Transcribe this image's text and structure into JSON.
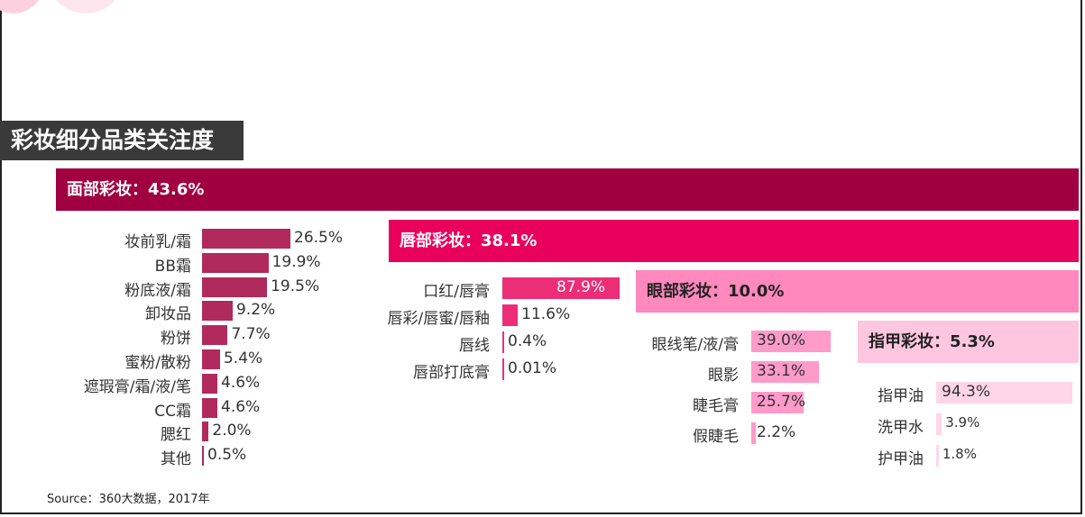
{
  "title": "彩妆细分品类关注度",
  "source": "Source：360大数据，2017年",
  "colors": {
    "face": "#a0003f",
    "face_bar": "#b02a5e",
    "lip": "#e8005c",
    "lip_bar": "#ec2e77",
    "eye": "#ff88bd",
    "eye_bar": "#ff9ac9",
    "nail": "#ffc6df",
    "nail_bar": "#ffd6e8"
  },
  "chart_data": [
    {
      "type": "bar",
      "title": "面部彩妆：43.6%",
      "categories": [
        "妆前乳/霜",
        "BB霜",
        "粉底液/霜",
        "卸妆品",
        "粉饼",
        "蜜粉/散粉",
        "遮瑕膏/霜/液/笔",
        "CC霜",
        "腮红",
        "其他"
      ],
      "values": [
        26.5,
        19.9,
        19.5,
        9.2,
        7.7,
        5.4,
        4.6,
        4.6,
        2.0,
        0.5
      ],
      "labels": [
        "26.5%",
        "19.9%",
        "19.5%",
        "9.2%",
        "7.7%",
        "5.4%",
        "4.6%",
        "4.6%",
        "2.0%",
        "0.5%"
      ]
    },
    {
      "type": "bar",
      "title": "唇部彩妆：38.1%",
      "categories": [
        "口红/唇膏",
        "唇彩/唇蜜/唇釉",
        "唇线",
        "唇部打底膏"
      ],
      "values": [
        87.9,
        11.6,
        0.4,
        0.01
      ],
      "labels": [
        "87.9%",
        "11.6%",
        "0.4%",
        "0.01%"
      ]
    },
    {
      "type": "bar",
      "title": "眼部彩妆：10.0%",
      "categories": [
        "眼线笔/液/膏",
        "眼影",
        "睫毛膏",
        "假睫毛"
      ],
      "values": [
        39.0,
        33.1,
        25.7,
        2.2
      ],
      "labels": [
        "39.0%",
        "33.1%",
        "25.7%",
        "2.2%"
      ]
    },
    {
      "type": "bar",
      "title": "指甲彩妆：5.3%",
      "categories": [
        "指甲油",
        "洗甲水",
        "护甲油"
      ],
      "values": [
        94.3,
        3.9,
        1.8
      ],
      "labels": [
        "94.3%",
        "3.9%",
        "1.8%"
      ]
    }
  ]
}
